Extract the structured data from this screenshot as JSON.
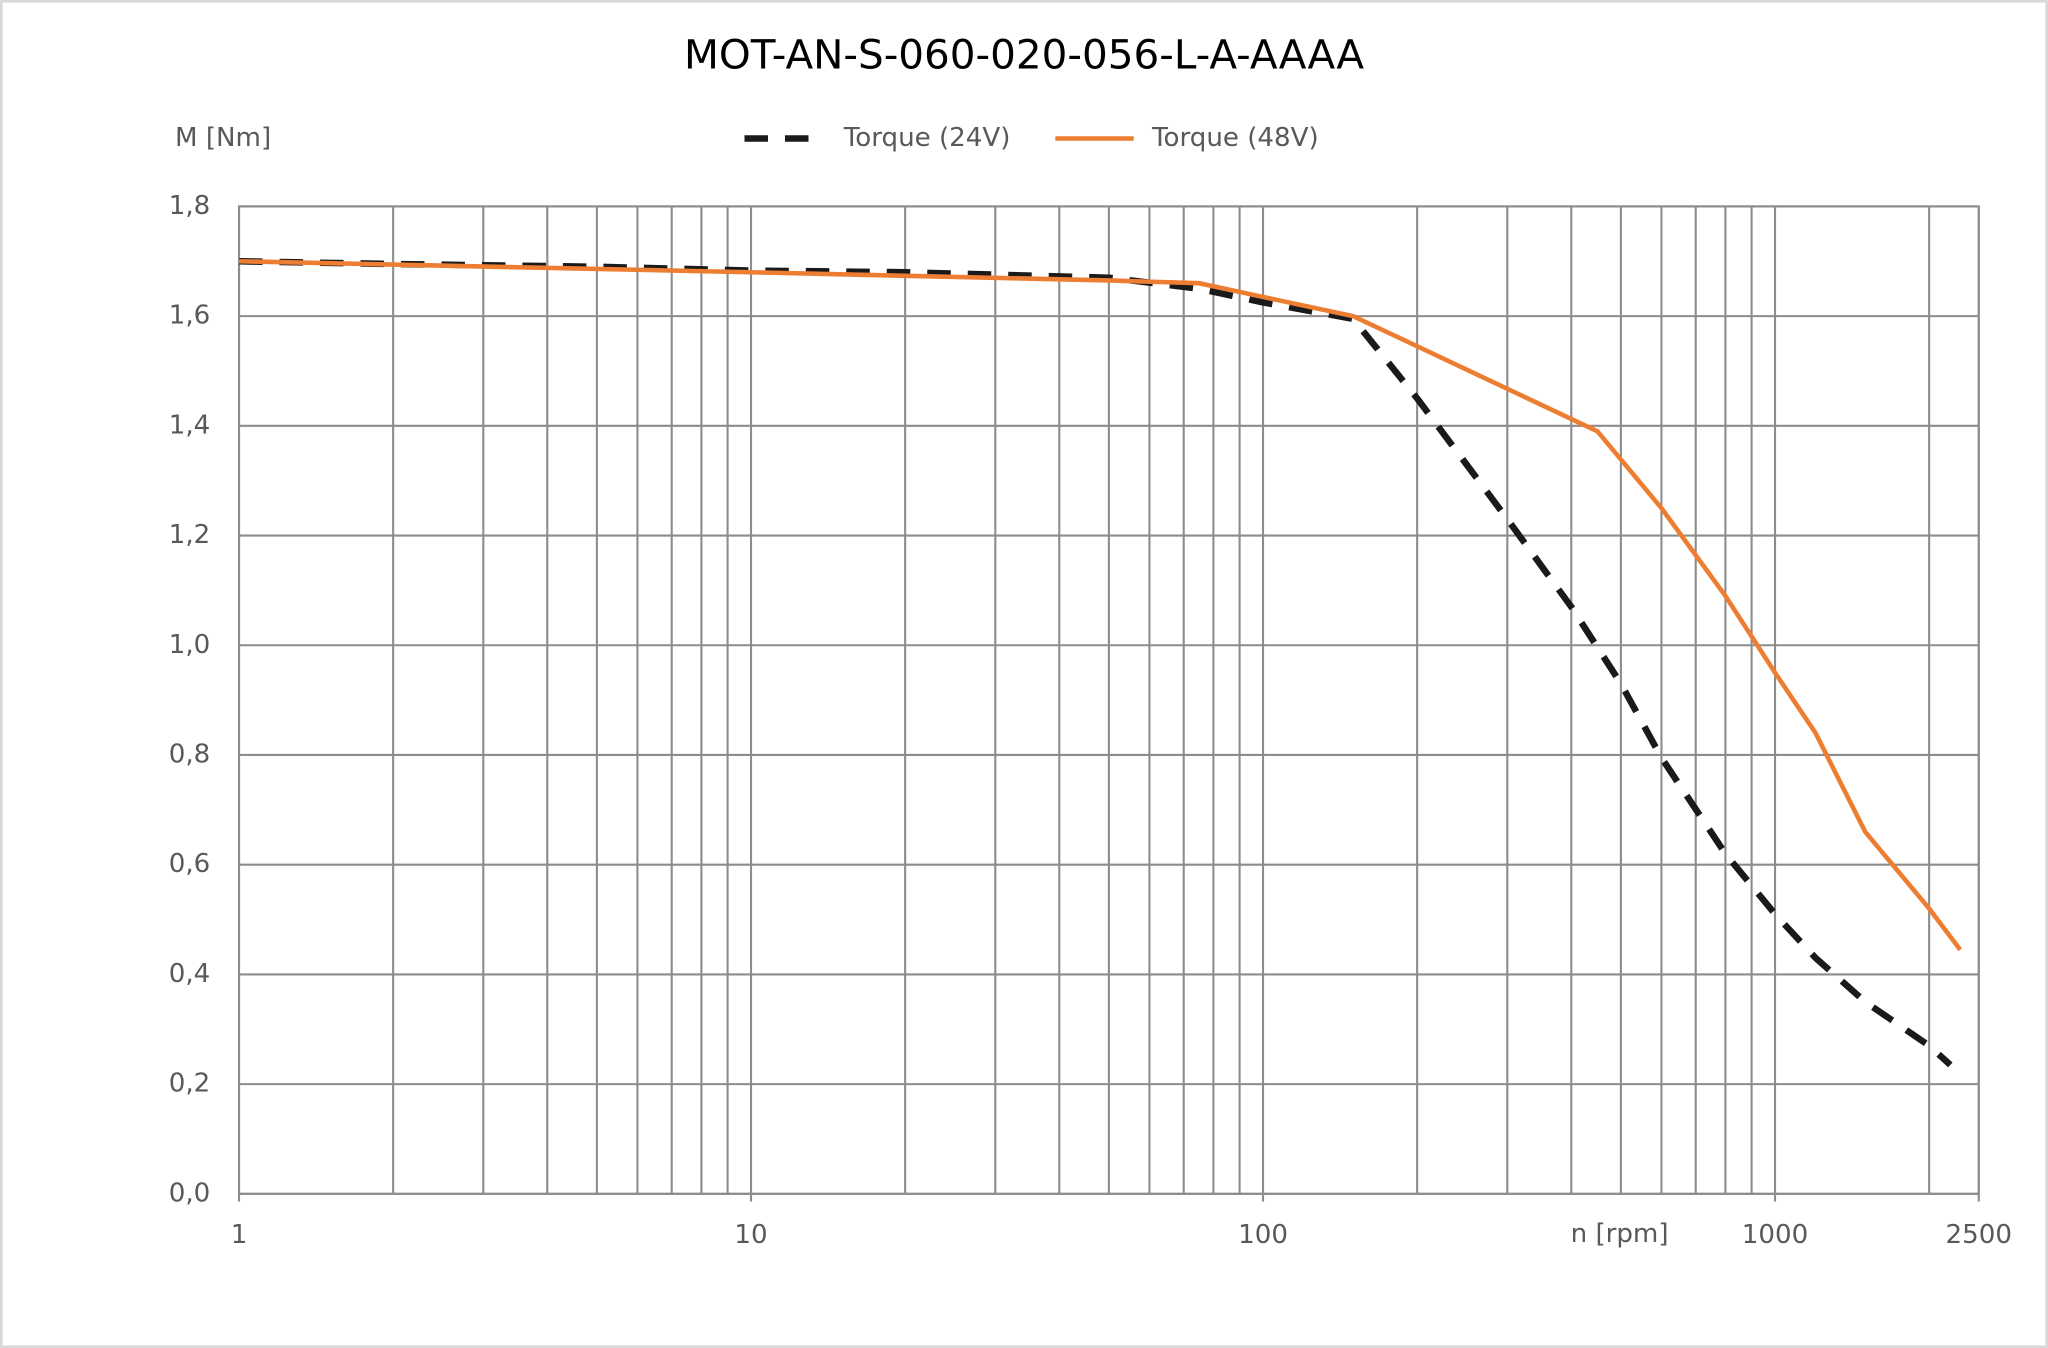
{
  "chart_data": {
    "type": "line",
    "title": "MOT-AN-S-060-020-056-L-A-AAAA",
    "y_label": "M [Nm]",
    "x_label": "n [rpm]",
    "xlog": true,
    "grid": true,
    "minor_grid": true,
    "legend": "top",
    "xlim": [
      1,
      2500
    ],
    "xticks": [
      1,
      10,
      100,
      1000,
      2500
    ],
    "ylim": [
      0,
      1.8
    ],
    "yticks": [
      {
        "value": 0,
        "label": "0,0"
      },
      {
        "value": 0.2,
        "label": "0,2"
      },
      {
        "value": 0.4,
        "label": "0,4"
      },
      {
        "value": 0.6,
        "label": "0,6"
      },
      {
        "value": 0.8,
        "label": "0,8"
      },
      {
        "value": 1.0,
        "label": "1,0"
      },
      {
        "value": 1.2,
        "label": "1,2"
      },
      {
        "value": 1.4,
        "label": "1,4"
      },
      {
        "value": 1.6,
        "label": "1,6"
      },
      {
        "value": 1.8,
        "label": "1,8"
      }
    ],
    "series": [
      {
        "name": "Torque (24V)",
        "color": "#1a1a1a",
        "dash": true,
        "x": [
          1,
          2,
          5,
          10,
          20,
          50,
          75,
          100,
          150,
          200,
          300,
          400,
          500,
          600,
          800,
          1000,
          1200,
          1500,
          2000,
          2200
        ],
        "values": [
          1.7,
          1.695,
          1.69,
          1.683,
          1.68,
          1.67,
          1.65,
          1.625,
          1.595,
          1.45,
          1.23,
          1.07,
          0.93,
          0.795,
          0.62,
          0.51,
          0.43,
          0.35,
          0.27,
          0.235
        ]
      },
      {
        "name": "Torque (48V)",
        "color": "#ed7d31",
        "dash": false,
        "x": [
          1,
          10,
          50,
          75,
          100,
          150,
          450,
          600,
          800,
          1000,
          1200,
          1500,
          2000,
          2300
        ],
        "values": [
          1.7,
          1.68,
          1.665,
          1.66,
          1.635,
          1.6,
          1.39,
          1.25,
          1.09,
          0.95,
          0.84,
          0.66,
          0.52,
          0.445
        ]
      }
    ]
  }
}
